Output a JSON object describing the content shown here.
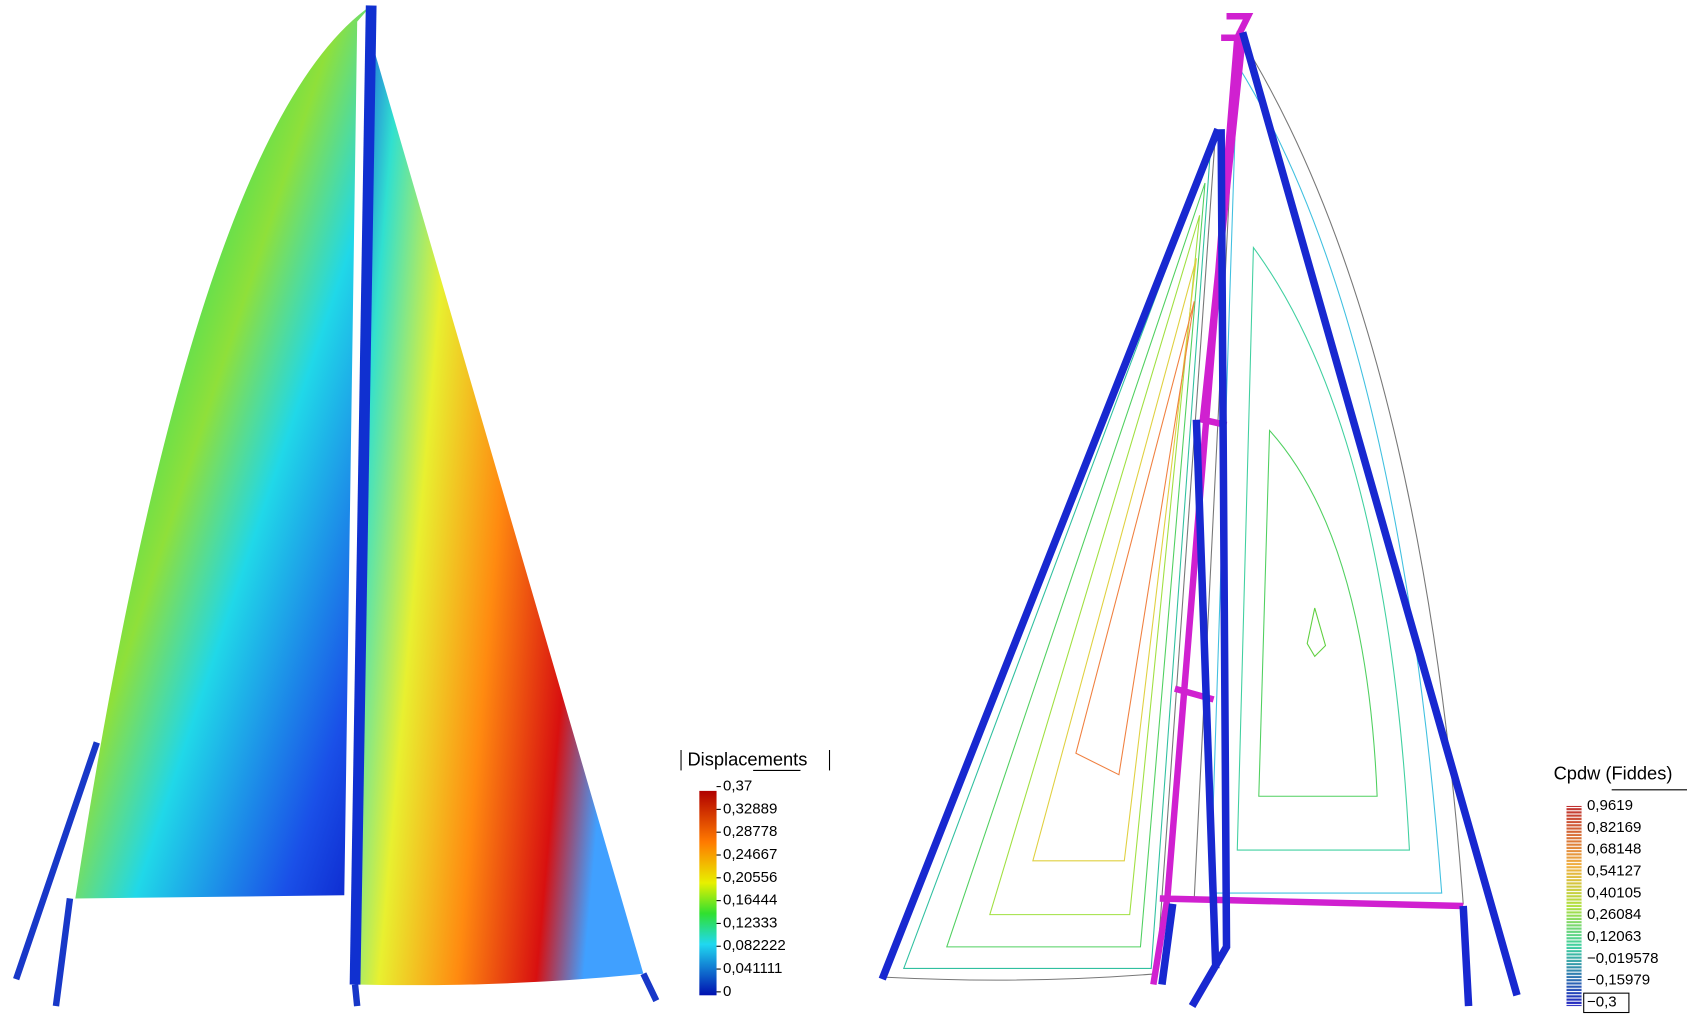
{
  "left_legend": {
    "title": "Displacements",
    "labels": [
      "0,37",
      "0,32889",
      "0,28778",
      "0,24667",
      "0,20556",
      "0,16444",
      "0,12333",
      "0,082222",
      "0,041111",
      "0"
    ]
  },
  "right_legend": {
    "title": "Cpdw (Fiddes)",
    "labels": [
      "0,9619",
      "0,82169",
      "0,68148",
      "0,54127",
      "0,40105",
      "0,26084",
      "0,12063",
      "−0,019578",
      "−0,15979",
      "−0,3"
    ]
  }
}
